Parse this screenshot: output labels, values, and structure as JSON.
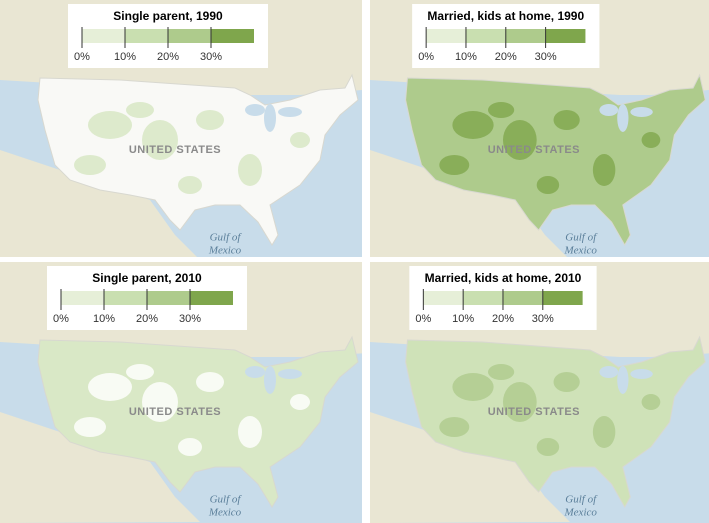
{
  "legend": {
    "ticks": [
      "0%",
      "10%",
      "20%",
      "30%"
    ],
    "colors": [
      "#e6efd8",
      "#c9dfb0",
      "#aecb8c",
      "#7fa64c"
    ]
  },
  "panels": [
    {
      "title": "Single parent, 1990",
      "us_fill": "#f9f9f6",
      "patch_fill": "#d6e6c2",
      "country_label": "UNITED STATES",
      "gulf_label": [
        "Gulf of",
        "Mexico"
      ]
    },
    {
      "title": "Married, kids at home, 1990",
      "us_fill": "#aecb8c",
      "patch_fill": "#7fa64c",
      "country_label": "UNITED STATES",
      "gulf_label": [
        "Gulf of",
        "Mexico"
      ]
    },
    {
      "title": "Single parent, 2010",
      "us_fill": "#d9e8c6",
      "patch_fill": "#ffffff",
      "country_label": "UNITED STATES",
      "gulf_label": [
        "Gulf of",
        "Mexico"
      ]
    },
    {
      "title": "Married, kids at home, 2010",
      "us_fill": "#cfe2b8",
      "patch_fill": "#aecb8c",
      "country_label": "UNITED STATES",
      "gulf_label": [
        "Gulf of",
        "Mexico"
      ]
    }
  ]
}
